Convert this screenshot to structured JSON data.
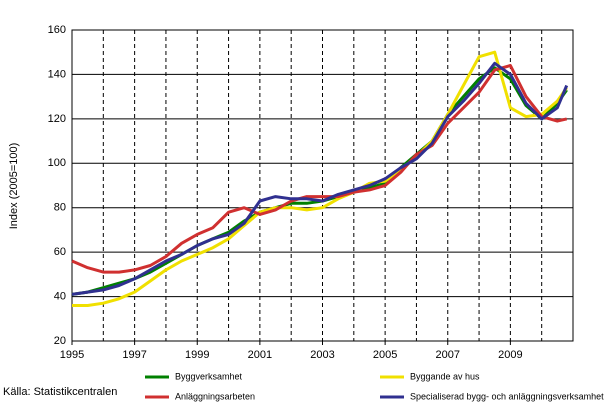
{
  "chart_data": {
    "type": "line",
    "ylabel": "Index (2005=100)",
    "source": "Källa: Statistikcentralen",
    "x": [
      1995,
      1995.5,
      1996,
      1996.5,
      1997,
      1997.5,
      1998,
      1998.5,
      1999,
      1999.5,
      2000,
      2000.5,
      2001,
      2001.5,
      2002,
      2002.5,
      2003,
      2003.5,
      2004,
      2004.5,
      2005,
      2005.5,
      2006,
      2006.5,
      2007,
      2007.5,
      2008,
      2008.5,
      2009,
      2009.5,
      2010,
      2010.5,
      2010.8
    ],
    "series": [
      {
        "name": "Byggverksamhet",
        "color": "#008000",
        "values": [
          41,
          42,
          44,
          46,
          48,
          51,
          55,
          59,
          63,
          66,
          69,
          74,
          78,
          80,
          82,
          82,
          83,
          85,
          87,
          89,
          91,
          98,
          104,
          110,
          122,
          130,
          138,
          143,
          138,
          126,
          120,
          127,
          133
        ]
      },
      {
        "name": "Byggande av hus",
        "color": "#f0e000",
        "values": [
          36,
          36,
          37,
          39,
          42,
          47,
          52,
          56,
          59,
          62,
          66,
          72,
          78,
          80,
          80,
          79,
          80,
          84,
          87,
          91,
          92,
          97,
          103,
          110,
          122,
          135,
          148,
          150,
          125,
          121,
          122,
          128,
          134
        ]
      },
      {
        "name": "Anläggningsarbeten",
        "color": "#d03030",
        "values": [
          56,
          53,
          51,
          51,
          52,
          54,
          58,
          64,
          68,
          71,
          78,
          80,
          77,
          79,
          83,
          85,
          85,
          85,
          87,
          88,
          90,
          96,
          104,
          108,
          118,
          125,
          132,
          142,
          144,
          130,
          121,
          119,
          120
        ]
      },
      {
        "name": "Specialiserad bygg- och anläggningsverksamhet",
        "color": "#303090",
        "values": [
          41,
          42,
          43,
          45,
          48,
          52,
          56,
          59,
          63,
          66,
          68,
          73,
          83,
          85,
          84,
          84,
          83,
          86,
          88,
          90,
          93,
          98,
          102,
          109,
          121,
          128,
          136,
          145,
          140,
          127,
          120,
          125,
          135
        ]
      }
    ],
    "xlim": [
      1995,
      2011
    ],
    "xticks": [
      1995,
      1997,
      1999,
      2001,
      2003,
      2005,
      2007,
      2009
    ],
    "xgrid": [
      1996,
      1997,
      1998,
      1999,
      2000,
      2001,
      2002,
      2003,
      2004,
      2005,
      2006,
      2007,
      2008,
      2009,
      2010
    ],
    "ylim": [
      20,
      160
    ],
    "yticks": [
      20,
      40,
      60,
      80,
      100,
      120,
      140,
      160
    ],
    "grid": true
  }
}
